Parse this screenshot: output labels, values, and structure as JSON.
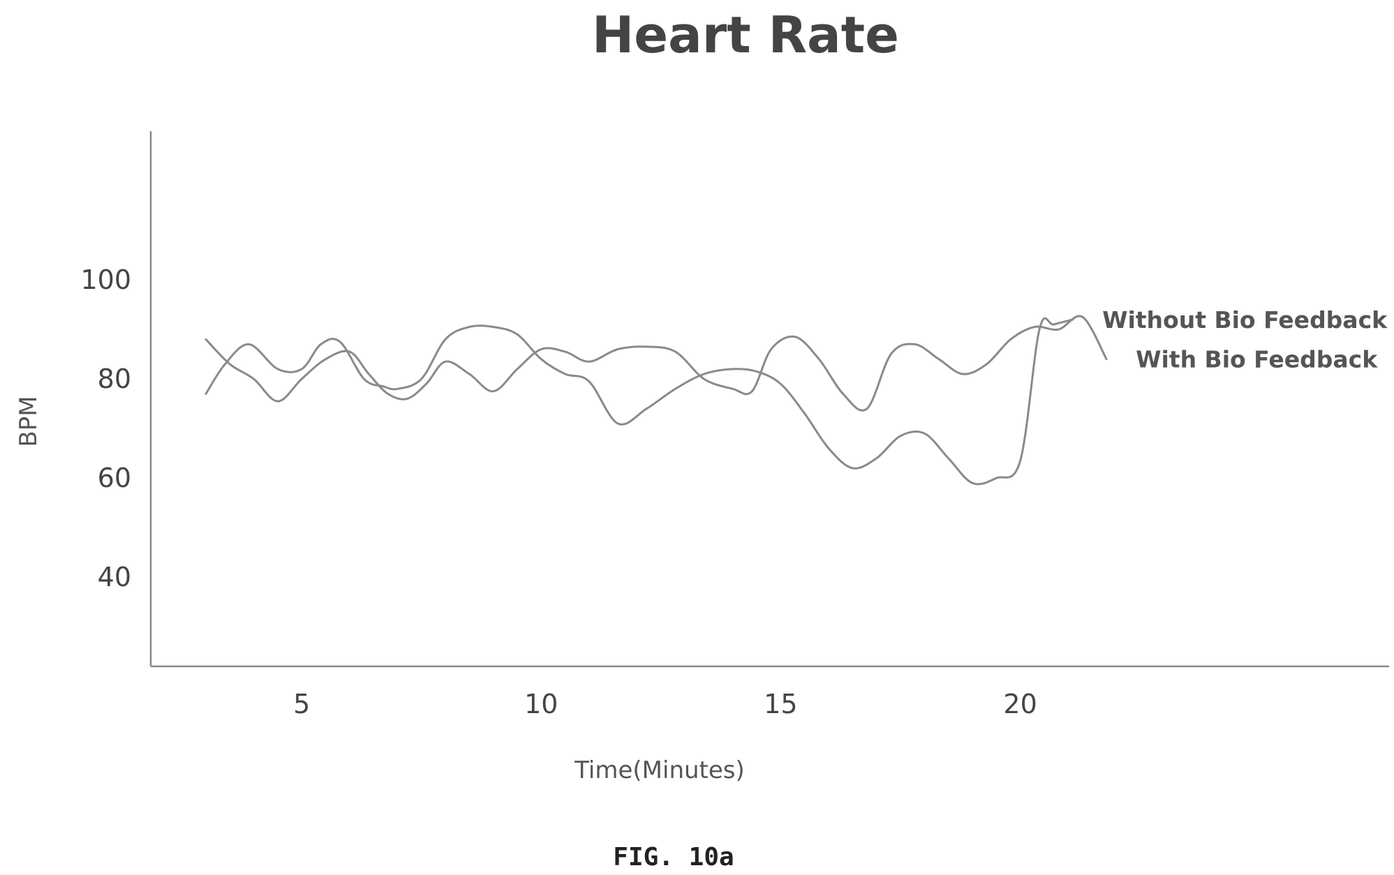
{
  "chart_data": {
    "type": "line",
    "title": "Heart Rate",
    "xlabel": "Time(Minutes)",
    "ylabel": "BPM",
    "caption": "FIG. 10a",
    "xlim": [
      1.85,
      27.7
    ],
    "ylim": [
      22,
      130
    ],
    "x_ticks": [
      5,
      10,
      15,
      20
    ],
    "y_ticks": [
      40,
      60,
      80,
      100
    ],
    "grid": false,
    "legend": "inline labels at line ends",
    "line_color": "#8a8a8a",
    "series": [
      {
        "name": "Without Bio Feedback",
        "x": [
          3.0,
          3.4,
          3.9,
          4.5,
          5.0,
          5.4,
          5.8,
          6.3,
          6.7,
          7.0,
          7.5,
          8.0,
          8.5,
          9.0,
          9.5,
          10.0,
          10.5,
          11.0,
          11.6,
          12.2,
          12.8,
          13.4,
          14.0,
          14.5,
          15.0,
          15.5,
          16.0,
          16.5,
          17.0,
          17.5,
          18.0,
          18.5,
          19.0,
          19.5,
          20.0,
          20.4,
          20.7,
          21.1
        ],
        "y": [
          77,
          83,
          87,
          82,
          82,
          87,
          87.5,
          80,
          78.5,
          78,
          80,
          88,
          90.5,
          90.5,
          89,
          84,
          81,
          79.5,
          71,
          74,
          78,
          81,
          82,
          81.5,
          79,
          73,
          66,
          62,
          64,
          68.5,
          69,
          64,
          59,
          60,
          63.5,
          90,
          91,
          92
        ]
      },
      {
        "name": "With Bio Feedback",
        "x": [
          3.0,
          3.5,
          4.0,
          4.5,
          5.0,
          5.5,
          6.0,
          6.4,
          6.8,
          7.2,
          7.6,
          8.0,
          8.5,
          9.0,
          9.5,
          10.0,
          10.5,
          11.0,
          11.6,
          12.2,
          12.8,
          13.4,
          14.0,
          14.4,
          14.8,
          15.3,
          15.8,
          16.3,
          16.8,
          17.3,
          17.8,
          18.3,
          18.8,
          19.3,
          19.8,
          20.3,
          20.8,
          21.3,
          21.8
        ],
        "y": [
          88,
          83,
          80,
          75.5,
          80,
          84,
          85.5,
          81,
          77,
          76,
          79,
          83.5,
          81,
          77.5,
          82,
          86,
          85.5,
          83.5,
          86,
          86.5,
          85.5,
          80,
          78,
          77.5,
          86,
          88.5,
          84,
          77,
          74,
          85,
          87,
          84,
          81,
          83,
          88,
          90.5,
          90,
          92.5,
          84
        ]
      }
    ]
  }
}
